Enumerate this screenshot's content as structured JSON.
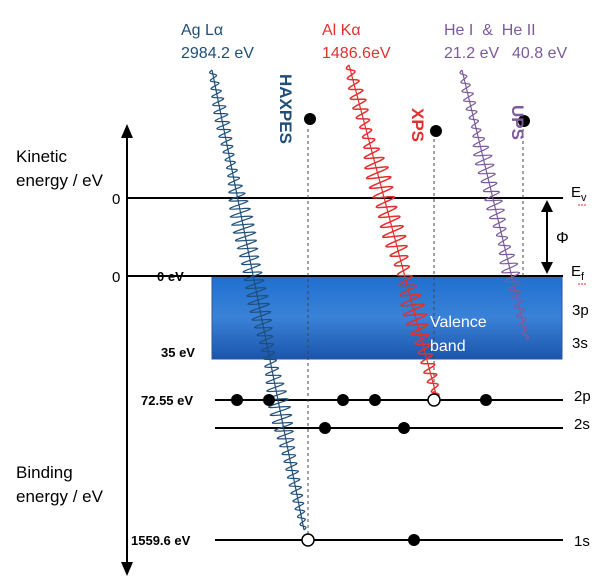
{
  "axis": {
    "top_label_line1": "Kinetic",
    "top_label_line2": "energy / eV",
    "bottom_label_line1": "Binding",
    "bottom_label_line2": "energy / eV"
  },
  "levels": {
    "vacuum_ke": "0",
    "fermi_ke": "0",
    "fermi_be": "0 eV",
    "band_bottom_be": "35 eV",
    "level_2p_be": "72.55 eV",
    "level_1s_be": "1559.6 eV"
  },
  "right_labels": {
    "vacuum": "E",
    "vacuum_sub": "v",
    "fermi": "E",
    "fermi_sub": "f",
    "work_function": "Φ",
    "band_3p": "3p",
    "band_3s": "3s",
    "core_2p": "2p",
    "core_2s": "2s",
    "core_1s": "1s"
  },
  "band": {
    "line1": "Valence",
    "line2": "band"
  },
  "sources": {
    "ag_name": "Ag Lα",
    "ag_energy": "2984.2 eV",
    "al_name": "Al Kα",
    "al_energy": "1486.6eV",
    "he_names": "He I  &  He II",
    "he1_energy": "21.2 eV",
    "he2_energy": "40.8 eV"
  },
  "techniques": {
    "haxpes": "HAXPES",
    "xps": "XPS",
    "ups": "UPS"
  },
  "colors": {
    "haxpes": "#1f4e79",
    "xps": "#e0302f",
    "ups": "#7b5b9b",
    "band_top": "#1d63c2",
    "band_bottom": "#1a52a8"
  }
}
